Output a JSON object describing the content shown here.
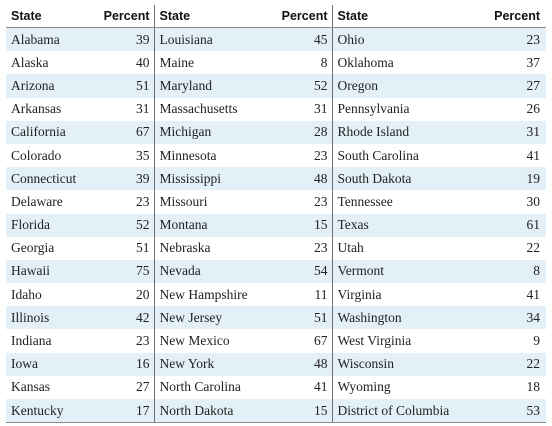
{
  "headers": {
    "state": "State",
    "percent": "Percent"
  },
  "rows": [
    [
      {
        "state": "Alabama",
        "percent": "39"
      },
      {
        "state": "Louisiana",
        "percent": "45"
      },
      {
        "state": "Ohio",
        "percent": "23"
      }
    ],
    [
      {
        "state": "Alaska",
        "percent": "40"
      },
      {
        "state": "Maine",
        "percent": "8"
      },
      {
        "state": "Oklahoma",
        "percent": "37"
      }
    ],
    [
      {
        "state": "Arizona",
        "percent": "51"
      },
      {
        "state": "Maryland",
        "percent": "52"
      },
      {
        "state": "Oregon",
        "percent": "27"
      }
    ],
    [
      {
        "state": "Arkansas",
        "percent": "31"
      },
      {
        "state": "Massachusetts",
        "percent": "31"
      },
      {
        "state": "Pennsylvania",
        "percent": "26"
      }
    ],
    [
      {
        "state": "California",
        "percent": "67"
      },
      {
        "state": "Michigan",
        "percent": "28"
      },
      {
        "state": "Rhode Island",
        "percent": "31"
      }
    ],
    [
      {
        "state": "Colorado",
        "percent": "35"
      },
      {
        "state": "Minnesota",
        "percent": "23"
      },
      {
        "state": "South Carolina",
        "percent": "41"
      }
    ],
    [
      {
        "state": "Connecticut",
        "percent": "39"
      },
      {
        "state": "Mississippi",
        "percent": "48"
      },
      {
        "state": "South Dakota",
        "percent": "19"
      }
    ],
    [
      {
        "state": "Delaware",
        "percent": "23"
      },
      {
        "state": "Missouri",
        "percent": "23"
      },
      {
        "state": "Tennessee",
        "percent": "30"
      }
    ],
    [
      {
        "state": "Florida",
        "percent": "52"
      },
      {
        "state": "Montana",
        "percent": "15"
      },
      {
        "state": "Texas",
        "percent": "61"
      }
    ],
    [
      {
        "state": "Georgia",
        "percent": "51"
      },
      {
        "state": "Nebraska",
        "percent": "23"
      },
      {
        "state": "Utah",
        "percent": "22"
      }
    ],
    [
      {
        "state": "Hawaii",
        "percent": "75"
      },
      {
        "state": "Nevada",
        "percent": "54"
      },
      {
        "state": "Vermont",
        "percent": "8"
      }
    ],
    [
      {
        "state": "Idaho",
        "percent": "20"
      },
      {
        "state": "New Hampshire",
        "percent": "11"
      },
      {
        "state": "Virginia",
        "percent": "41"
      }
    ],
    [
      {
        "state": "Illinois",
        "percent": "42"
      },
      {
        "state": "New Jersey",
        "percent": "51"
      },
      {
        "state": "Washington",
        "percent": "34"
      }
    ],
    [
      {
        "state": "Indiana",
        "percent": "23"
      },
      {
        "state": "New Mexico",
        "percent": "67"
      },
      {
        "state": "West Virginia",
        "percent": "9"
      }
    ],
    [
      {
        "state": "Iowa",
        "percent": "16"
      },
      {
        "state": "New York",
        "percent": "48"
      },
      {
        "state": "Wisconsin",
        "percent": "22"
      }
    ],
    [
      {
        "state": "Kansas",
        "percent": "27"
      },
      {
        "state": "North Carolina",
        "percent": "41"
      },
      {
        "state": "Wyoming",
        "percent": "18"
      }
    ],
    [
      {
        "state": "Kentucky",
        "percent": "17"
      },
      {
        "state": "North Dakota",
        "percent": "15"
      },
      {
        "state": "District of Columbia",
        "percent": "53"
      }
    ]
  ]
}
